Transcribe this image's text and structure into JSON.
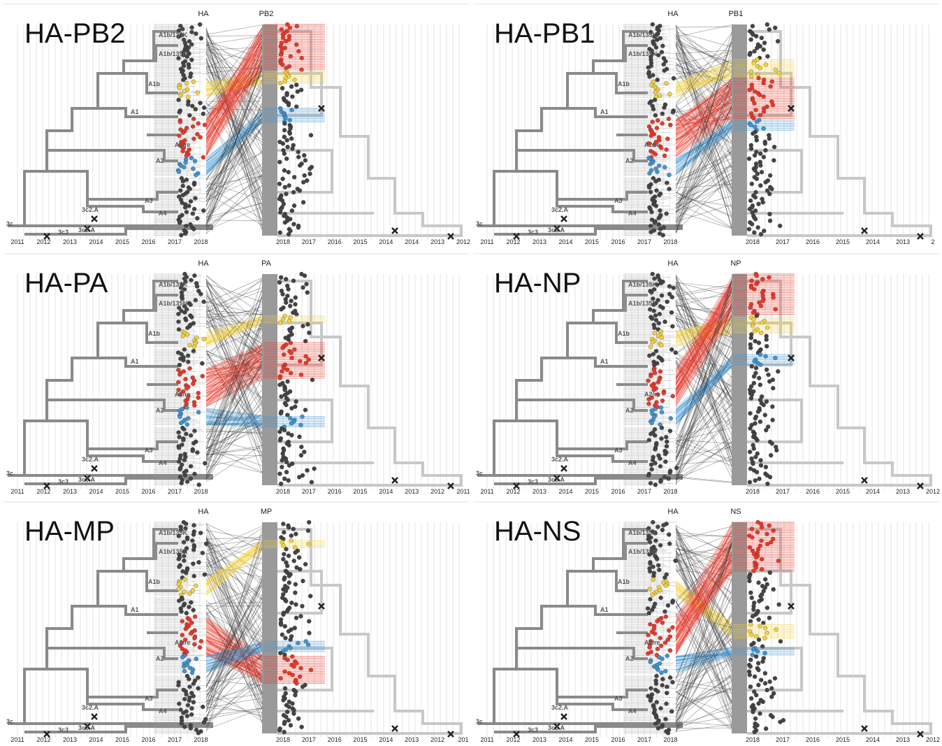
{
  "panels": [
    {
      "title": "HA-PB2",
      "left_label": "HA",
      "right_label": "PB2",
      "right_years": [
        "2018",
        "2017",
        "2016",
        "2015",
        "2014",
        "2014",
        "2013",
        "2012"
      ]
    },
    {
      "title": "HA-PB1",
      "left_label": "HA",
      "right_label": "PB1",
      "right_years": [
        "2018",
        "2017",
        "2016",
        "2015",
        "2014",
        "2013",
        "2"
      ]
    },
    {
      "title": "HA-PA",
      "left_label": "HA",
      "right_label": "PA",
      "right_years": [
        "2018",
        "2017",
        "2016",
        "2015",
        "2014",
        "2013",
        "2012",
        "2011"
      ]
    },
    {
      "title": "HA-NP",
      "left_label": "HA",
      "right_label": "NP",
      "right_years": [
        "2018",
        "2017",
        "2016",
        "2015",
        "2014",
        "2013",
        "2012"
      ]
    },
    {
      "title": "HA-MP",
      "left_label": "HA",
      "right_label": "MP",
      "right_years": [
        "2018",
        "2017",
        "2016",
        "2015",
        "2014",
        "2013",
        "2012",
        "201"
      ]
    },
    {
      "title": "HA-NS",
      "left_label": "HA",
      "right_label": "NS",
      "right_years": [
        "2018",
        "2017",
        "2016",
        "2015",
        "2014",
        "2013",
        "2012"
      ]
    }
  ],
  "left_years": [
    "2011",
    "2012",
    "2013",
    "2014",
    "2015",
    "2016",
    "2017",
    "2018"
  ],
  "clade_labels": [
    "A1b/135K",
    "A1b/135N",
    "A1b",
    "A1",
    "A2/re",
    "A2",
    "A3",
    "A4",
    "3c2.A",
    "3c3.A",
    "3c3",
    "3c"
  ]
}
